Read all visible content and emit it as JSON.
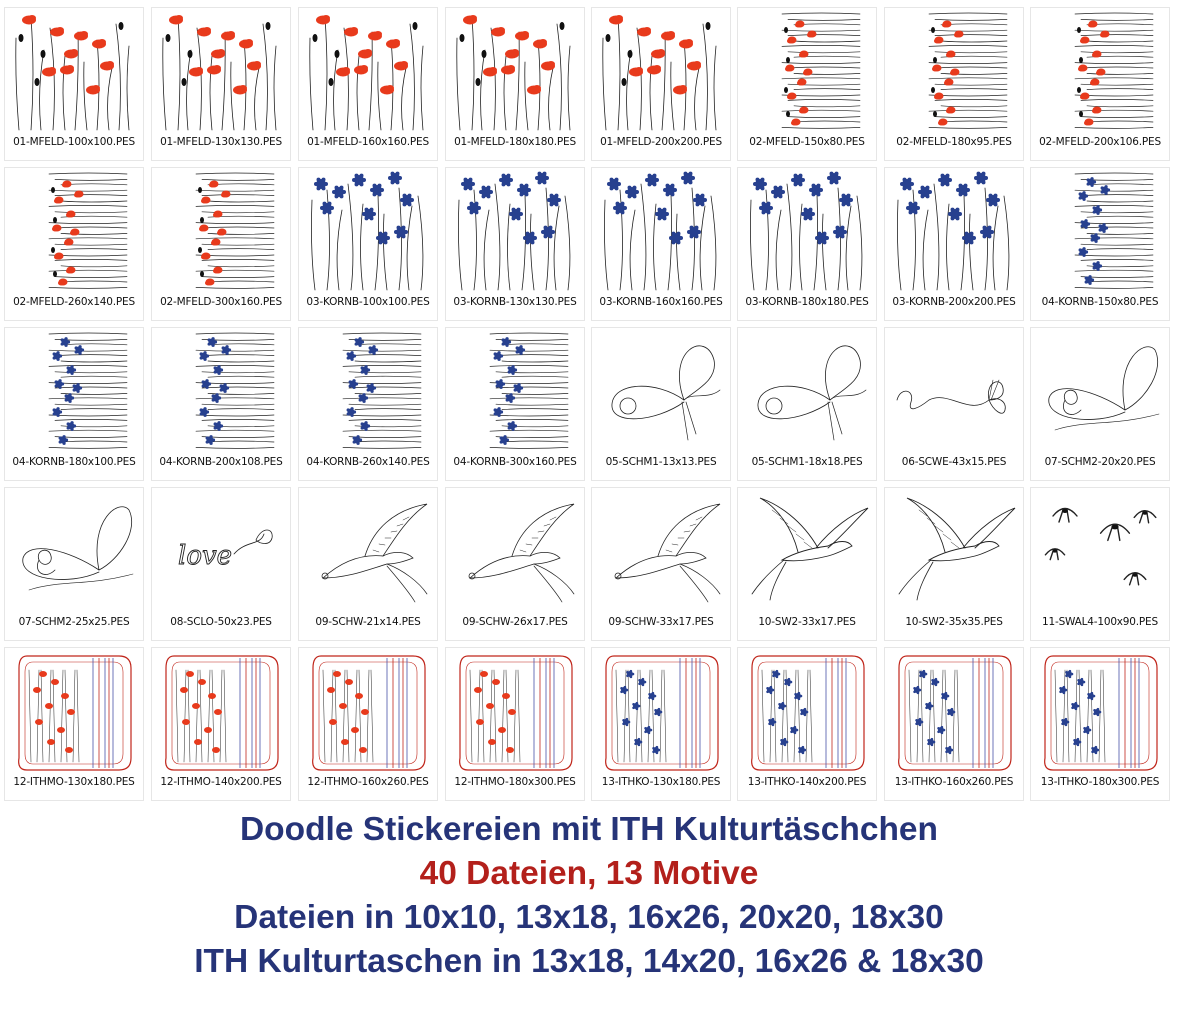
{
  "colors": {
    "poppy": "#e83a1c",
    "cornflower": "#27408f",
    "navy_text": "#263478",
    "red_text": "#b3201b",
    "bag_outline": "#c0261b",
    "bag_stripe_blue": "#4a52a8",
    "stroke": "#222222"
  },
  "files": [
    {
      "label": "01-MFELD-100x100.PES",
      "motif": "poppy-field",
      "icon": "poppy-field-icon"
    },
    {
      "label": "01-MFELD-130x130.PES",
      "motif": "poppy-field",
      "icon": "poppy-field-icon"
    },
    {
      "label": "01-MFELD-160x160.PES",
      "motif": "poppy-field",
      "icon": "poppy-field-icon"
    },
    {
      "label": "01-MFELD-180x180.PES",
      "motif": "poppy-field",
      "icon": "poppy-field-icon"
    },
    {
      "label": "01-MFELD-200x200.PES",
      "motif": "poppy-field",
      "icon": "poppy-field-icon"
    },
    {
      "label": "02-MFELD-150x80.PES",
      "motif": "poppy-border",
      "icon": "poppy-border-icon"
    },
    {
      "label": "02-MFELD-180x95.PES",
      "motif": "poppy-border",
      "icon": "poppy-border-icon"
    },
    {
      "label": "02-MFELD-200x106.PES",
      "motif": "poppy-border",
      "icon": "poppy-border-icon"
    },
    {
      "label": "02-MFELD-260x140.PES",
      "motif": "poppy-border",
      "icon": "poppy-border-icon"
    },
    {
      "label": "02-MFELD-300x160.PES",
      "motif": "poppy-border",
      "icon": "poppy-border-icon"
    },
    {
      "label": "03-KORNB-100x100.PES",
      "motif": "cornflower-field",
      "icon": "cornflower-field-icon"
    },
    {
      "label": "03-KORNB-130x130.PES",
      "motif": "cornflower-field",
      "icon": "cornflower-field-icon"
    },
    {
      "label": "03-KORNB-160x160.PES",
      "motif": "cornflower-field",
      "icon": "cornflower-field-icon"
    },
    {
      "label": "03-KORNB-180x180.PES",
      "motif": "cornflower-field",
      "icon": "cornflower-field-icon"
    },
    {
      "label": "03-KORNB-200x200.PES",
      "motif": "cornflower-field",
      "icon": "cornflower-field-icon"
    },
    {
      "label": "04-KORNB-150x80.PES",
      "motif": "cornflower-border",
      "icon": "cornflower-border-icon"
    },
    {
      "label": "04-KORNB-180x100.PES",
      "motif": "cornflower-border",
      "icon": "cornflower-border-icon"
    },
    {
      "label": "04-KORNB-200x108.PES",
      "motif": "cornflower-border",
      "icon": "cornflower-border-icon"
    },
    {
      "label": "04-KORNB-260x140.PES",
      "motif": "cornflower-border",
      "icon": "cornflower-border-icon"
    },
    {
      "label": "04-KORNB-300x160.PES",
      "motif": "cornflower-border",
      "icon": "cornflower-border-icon"
    },
    {
      "label": "05-SCHM1-13x13.PES",
      "motif": "butterfly",
      "icon": "butterfly-icon"
    },
    {
      "label": "05-SCHM1-18x18.PES",
      "motif": "butterfly",
      "icon": "butterfly-icon"
    },
    {
      "label": "06-SCWE-43x15.PES",
      "motif": "butterfly-trail",
      "icon": "butterfly-trail-icon"
    },
    {
      "label": "07-SCHM2-20x20.PES",
      "motif": "butterfly-swirl",
      "icon": "butterfly-swirl-icon"
    },
    {
      "label": "07-SCHM2-25x25.PES",
      "motif": "butterfly-swirl",
      "icon": "butterfly-swirl-icon"
    },
    {
      "label": "08-SCLO-50x23.PES",
      "motif": "love-script",
      "icon": "love-script-icon"
    },
    {
      "label": "09-SCHW-21x14.PES",
      "motif": "swallow",
      "icon": "swallow-icon"
    },
    {
      "label": "09-SCHW-26x17.PES",
      "motif": "swallow",
      "icon": "swallow-icon"
    },
    {
      "label": "09-SCHW-33x17.PES",
      "motif": "swallow",
      "icon": "swallow-icon"
    },
    {
      "label": "10-SW2-33x17.PES",
      "motif": "swallow-flight",
      "icon": "swallow-flight-icon"
    },
    {
      "label": "10-SW2-35x35.PES",
      "motif": "swallow-flight",
      "icon": "swallow-flight-icon"
    },
    {
      "label": "11-SWAL4-100x90.PES",
      "motif": "swallow-flock",
      "icon": "swallow-flock-icon"
    },
    {
      "label": "12-ITHMO-130x180.PES",
      "motif": "bag-poppy",
      "icon": "bag-poppy-icon"
    },
    {
      "label": "12-ITHMO-140x200.PES",
      "motif": "bag-poppy",
      "icon": "bag-poppy-icon"
    },
    {
      "label": "12-ITHMO-160x260.PES",
      "motif": "bag-poppy",
      "icon": "bag-poppy-icon"
    },
    {
      "label": "12-ITHMO-180x300.PES",
      "motif": "bag-poppy",
      "icon": "bag-poppy-icon"
    },
    {
      "label": "13-ITHKO-130x180.PES",
      "motif": "bag-cornflower",
      "icon": "bag-cornflower-icon"
    },
    {
      "label": "13-ITHKO-140x200.PES",
      "motif": "bag-cornflower",
      "icon": "bag-cornflower-icon"
    },
    {
      "label": "13-ITHKO-160x260.PES",
      "motif": "bag-cornflower",
      "icon": "bag-cornflower-icon"
    },
    {
      "label": "13-ITHKO-180x300.PES",
      "motif": "bag-cornflower",
      "icon": "bag-cornflower-icon"
    }
  ],
  "promo": {
    "line1": "Doodle Stickereien mit ITH Kulturtäschchen",
    "line2": "40 Dateien, 13 Motive",
    "line3": "Dateien in 10x10, 13x18, 16x26, 20x20, 18x30",
    "line4": "ITH Kulturtaschen in 13x18, 14x20, 16x26 & 18x30"
  }
}
